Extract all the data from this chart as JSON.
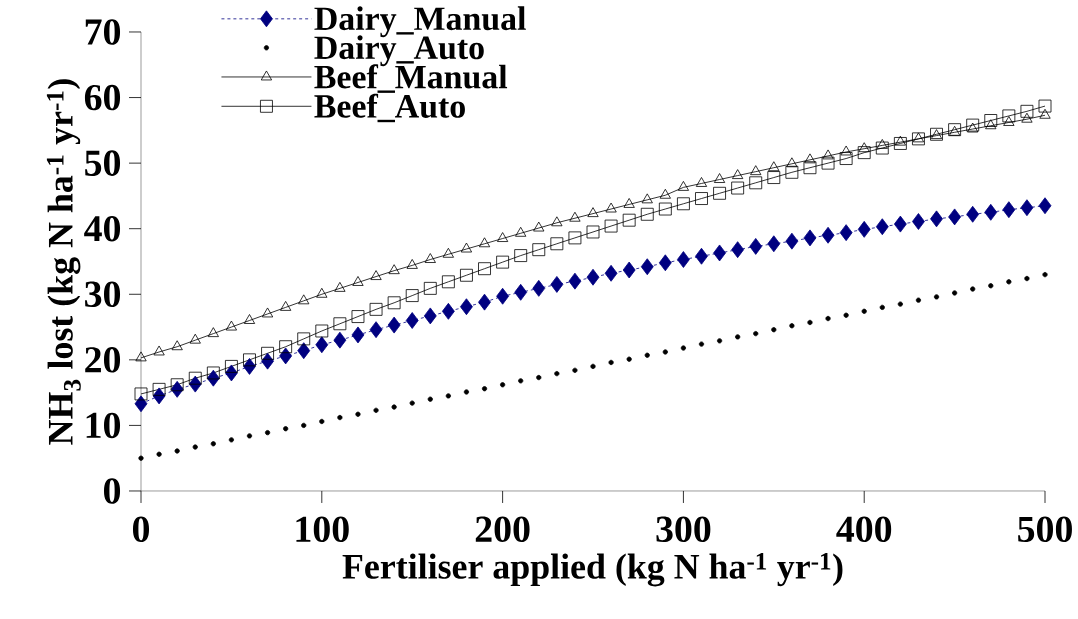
{
  "chart_data": {
    "type": "line",
    "xlabel": "Fertiliser applied (kg N ha$^{-1}$ yr$^{-1}$)",
    "ylabel": "NH$_{3}$ lost (kg N ha$^{-1}$ yr$^{-1}$)",
    "x": [
      0,
      10,
      20,
      30,
      40,
      50,
      60,
      70,
      80,
      90,
      100,
      110,
      120,
      130,
      140,
      150,
      160,
      170,
      180,
      190,
      200,
      210,
      220,
      230,
      240,
      250,
      260,
      270,
      280,
      290,
      300,
      310,
      320,
      330,
      340,
      350,
      360,
      370,
      380,
      390,
      400,
      410,
      420,
      430,
      440,
      450,
      460,
      470,
      480,
      490,
      500
    ],
    "xlim": [
      0,
      500
    ],
    "xticks": [
      0,
      100,
      200,
      300,
      400,
      500
    ],
    "ylim": [
      0,
      70
    ],
    "yticks": [
      0,
      10,
      20,
      30,
      40,
      50,
      60,
      70
    ],
    "grid": false,
    "legend": "top left",
    "series": [
      {
        "name": "Dairy_Manual",
        "color": "#000080",
        "marker": "diamond",
        "line_style": "dashed",
        "values": [
          13.3,
          14.5,
          15.5,
          16.3,
          17.2,
          18.0,
          19.0,
          19.8,
          20.6,
          21.4,
          22.3,
          23.0,
          23.8,
          24.6,
          25.3,
          26.0,
          26.7,
          27.4,
          28.1,
          28.8,
          29.7,
          30.3,
          30.9,
          31.5,
          32.0,
          32.6,
          33.2,
          33.7,
          34.2,
          34.8,
          35.3,
          35.8,
          36.3,
          36.8,
          37.3,
          37.7,
          38.1,
          38.6,
          39.0,
          39.4,
          39.9,
          40.3,
          40.7,
          41.1,
          41.5,
          41.8,
          42.2,
          42.5,
          42.9,
          43.2,
          43.5
        ]
      },
      {
        "name": "Dairy_Auto",
        "type": "scatter",
        "color": "#000000",
        "marker": "circle",
        "values": [
          5.0,
          5.6,
          6.1,
          6.7,
          7.2,
          7.8,
          8.4,
          8.9,
          9.5,
          10.0,
          10.6,
          11.2,
          11.7,
          12.3,
          12.8,
          13.4,
          14.0,
          14.5,
          15.1,
          15.6,
          16.2,
          16.8,
          17.3,
          17.9,
          18.4,
          19.0,
          19.6,
          20.1,
          20.7,
          21.2,
          21.8,
          22.4,
          22.9,
          23.5,
          24.0,
          24.6,
          25.2,
          25.7,
          26.3,
          26.8,
          27.4,
          28.0,
          28.5,
          29.1,
          29.6,
          30.2,
          30.8,
          31.3,
          31.9,
          32.4,
          33.0
        ]
      },
      {
        "name": "Beef_Manual",
        "color": "#000000",
        "marker": "triangle",
        "line_style": "solid",
        "values": [
          20.3,
          21.2,
          22.0,
          23.0,
          24.0,
          25.0,
          26.0,
          27.0,
          28.0,
          29.0,
          30.0,
          30.9,
          31.8,
          32.7,
          33.6,
          34.4,
          35.3,
          36.1,
          36.9,
          37.7,
          38.5,
          39.3,
          40.1,
          40.9,
          41.6,
          42.3,
          43.0,
          43.7,
          44.4,
          45.1,
          46.3,
          46.9,
          47.5,
          48.1,
          48.7,
          49.3,
          49.9,
          50.5,
          51.1,
          51.7,
          52.2,
          52.7,
          53.2,
          53.7,
          54.2,
          54.7,
          55.2,
          55.7,
          56.2,
          56.7,
          57.3
        ]
      },
      {
        "name": "Beef_Auto",
        "color": "#000000",
        "marker": "square",
        "line_style": "solid",
        "values": [
          14.8,
          15.5,
          16.2,
          17.2,
          18.0,
          19.0,
          20.0,
          21.0,
          22.0,
          23.2,
          24.4,
          25.5,
          26.6,
          27.7,
          28.7,
          29.8,
          30.9,
          31.9,
          32.9,
          33.9,
          34.9,
          35.9,
          36.8,
          37.7,
          38.6,
          39.5,
          40.4,
          41.3,
          42.2,
          43.0,
          43.8,
          44.6,
          45.4,
          46.2,
          47.0,
          47.8,
          48.6,
          49.3,
          50.0,
          50.7,
          51.6,
          52.3,
          53.0,
          53.7,
          54.4,
          55.1,
          55.8,
          56.5,
          57.2,
          57.9,
          58.7
        ]
      }
    ]
  }
}
